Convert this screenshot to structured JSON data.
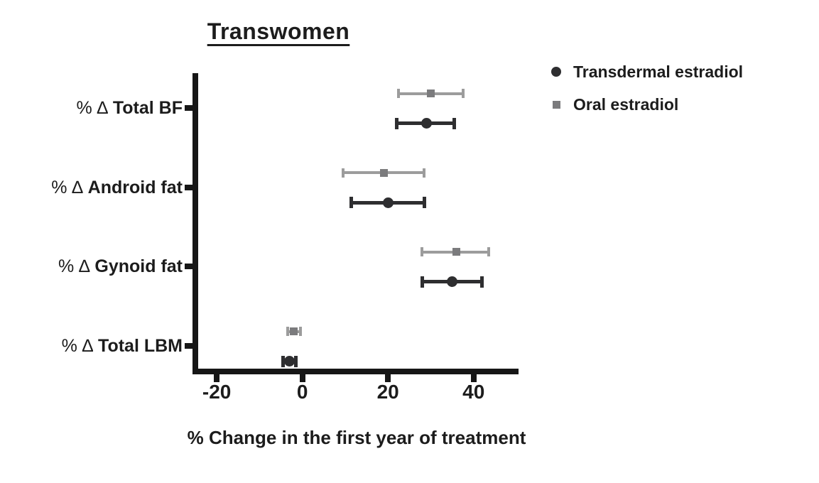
{
  "chart_data": {
    "type": "scatter",
    "title": "Transwomen",
    "xlabel": "% Change in the first year of treatment",
    "x_tick_labels": [
      "-20",
      "0",
      "20",
      "40"
    ],
    "x_tick_values": [
      -20,
      0,
      20,
      40
    ],
    "xlim": [
      -25,
      50.5
    ],
    "grid": false,
    "legend_position": "top-right",
    "orientation": "horizontal-forest-plot",
    "categories": [
      {
        "prefix": "% ∆",
        "label": "Total BF"
      },
      {
        "prefix": "% ∆",
        "label": "Android fat"
      },
      {
        "prefix": "% ∆",
        "label": "Gynoid fat"
      },
      {
        "prefix": "% ∆",
        "label": "Total LBM"
      }
    ],
    "series": [
      {
        "name": "Transdermal estradiol",
        "marker": "circle",
        "marker_color": "#2e2e30",
        "line_color": "#2e2e30",
        "points": [
          {
            "category": "Total BF",
            "mean": 29,
            "lo": 22,
            "hi": 35.5
          },
          {
            "category": "Android fat",
            "mean": 20,
            "lo": 11.5,
            "hi": 28.5
          },
          {
            "category": "Gynoid fat",
            "mean": 35,
            "lo": 28,
            "hi": 42
          },
          {
            "category": "Total LBM",
            "mean": -3,
            "lo": -4.5,
            "hi": -1.5
          }
        ]
      },
      {
        "name": "Oral estradiol",
        "marker": "square",
        "marker_color": "#7b7b7d",
        "line_color": "#9c9c9c",
        "points": [
          {
            "category": "Total BF",
            "mean": 30,
            "lo": 22.5,
            "hi": 37.5
          },
          {
            "category": "Android fat",
            "mean": 19,
            "lo": 9.5,
            "hi": 28.5
          },
          {
            "category": "Gynoid fat",
            "mean": 36,
            "lo": 28,
            "hi": 43.5
          },
          {
            "category": "Total LBM",
            "mean": -2,
            "lo": -3.5,
            "hi": -0.5
          }
        ]
      }
    ],
    "colors": {
      "axis": "#161616",
      "text": "#1c1c1c",
      "background": "#ffffff"
    }
  }
}
